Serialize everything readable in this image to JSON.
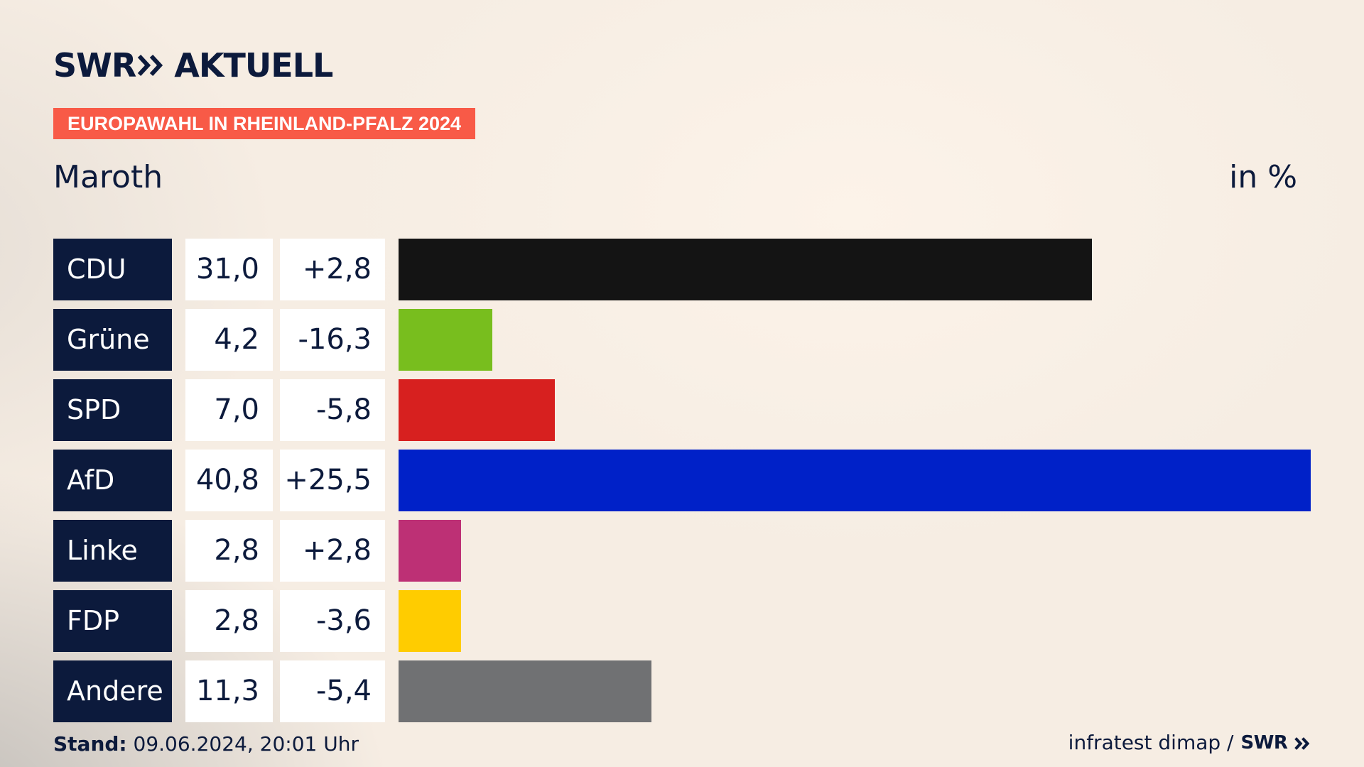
{
  "header": {
    "logo_left": "SWR",
    "logo_right": "AKTUELL",
    "kicker": "EUROPAWAHL IN RHEINLAND-PFALZ 2024",
    "place": "Maroth",
    "unit": "in %"
  },
  "colors": {
    "navy": "#0c1a3c",
    "kicker_bg": "#f85a47"
  },
  "chart_data": {
    "type": "bar",
    "orientation": "horizontal",
    "title": "Maroth",
    "unit": "in %",
    "xlim": [
      0,
      40.8
    ],
    "categories": [
      "CDU",
      "Grüne",
      "SPD",
      "AfD",
      "Linke",
      "FDP",
      "Andere"
    ],
    "values": [
      31.0,
      4.2,
      7.0,
      40.8,
      2.8,
      2.8,
      11.3
    ],
    "value_labels": [
      "31,0",
      "4,2",
      "7,0",
      "40,8",
      "2,8",
      "2,8",
      "11,3"
    ],
    "diff_labels": [
      "+2,8",
      "-16,3",
      "-5,8",
      "+25,5",
      "+2,8",
      "-3,6",
      "-5,4"
    ],
    "colors": [
      "#141414",
      "#78be1e",
      "#d7201f",
      "#0021c8",
      "#bd3075",
      "#ffcc00",
      "#707173"
    ]
  },
  "footer": {
    "stand_label": "Stand:",
    "stand_value": " 09.06.2024, 20:01 Uhr",
    "source": "infratest dimap /",
    "source_logo": "SWR"
  }
}
